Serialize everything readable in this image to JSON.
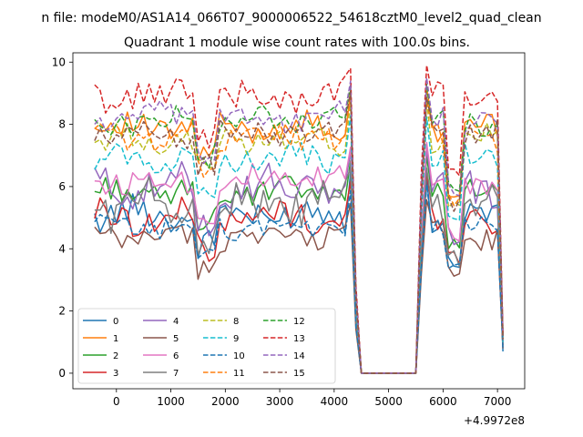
{
  "chart_data": {
    "type": "line",
    "suptitle": "n file: modeM0/AS1A14_066T07_9000006522_54618cztM0_level2_quad_clean",
    "title": "Quadrant 1 module wise count rates with 100.0s bins.",
    "xlabel": "",
    "ylabel": "",
    "offset_text": "+4.9972e8",
    "xlim": [
      -800,
      7500
    ],
    "ylim": [
      -0.5,
      10.3
    ],
    "xticks": [
      0,
      1000,
      2000,
      3000,
      4000,
      5000,
      6000,
      7000
    ],
    "yticks": [
      0,
      2,
      4,
      6,
      8,
      10
    ],
    "xticklabels": [
      "0",
      "1000",
      "2000",
      "3000",
      "4000",
      "5000",
      "6000",
      "7000"
    ],
    "yticklabels": [
      "0",
      "2",
      "4",
      "6",
      "8",
      "10"
    ],
    "legend_position": "lower-left",
    "segments": [
      {
        "x_start": -400,
        "x_end": 4300,
        "step": 100
      },
      {
        "x": [
          4400,
          4500,
          4600,
          5500,
          5600,
          5700
        ]
      },
      {
        "x_start": 5700,
        "x_end": 6900,
        "step": 100
      },
      {
        "x": [
          7000,
          7100
        ]
      }
    ],
    "series": [
      {
        "name": "0",
        "color": "#1f77b4",
        "dash": "solid",
        "base": 5.1,
        "amp": 0.6,
        "phase": 0.3,
        "drop_end": 0.7
      },
      {
        "name": "1",
        "color": "#ff7f0e",
        "dash": "solid",
        "base": 7.9,
        "amp": 0.5,
        "phase": 1.1,
        "drop_end": 1.2
      },
      {
        "name": "2",
        "color": "#2ca02c",
        "dash": "solid",
        "base": 5.8,
        "amp": 0.5,
        "phase": 2.0,
        "drop_end": 1.0
      },
      {
        "name": "3",
        "color": "#d62728",
        "dash": "solid",
        "base": 5.0,
        "amp": 0.6,
        "phase": 2.7,
        "drop_end": 0.9
      },
      {
        "name": "4",
        "color": "#9467bd",
        "dash": "solid",
        "base": 6.0,
        "amp": 0.7,
        "phase": 3.3,
        "drop_end": 1.1
      },
      {
        "name": "5",
        "color": "#8c564b",
        "dash": "solid",
        "base": 4.4,
        "amp": 0.5,
        "phase": 4.1,
        "drop_end": 0.8
      },
      {
        "name": "6",
        "color": "#e377c2",
        "dash": "solid",
        "base": 6.2,
        "amp": 0.5,
        "phase": 4.8,
        "drop_end": 1.0
      },
      {
        "name": "7",
        "color": "#7f7f7f",
        "dash": "solid",
        "base": 5.4,
        "amp": 0.8,
        "phase": 5.4,
        "drop_end": 0.9
      },
      {
        "name": "8",
        "color": "#bcbd22",
        "dash": "dashed",
        "base": 7.5,
        "amp": 0.5,
        "phase": 0.9,
        "drop_end": 1.1
      },
      {
        "name": "9",
        "color": "#17becf",
        "dash": "dashed",
        "base": 6.9,
        "amp": 0.5,
        "phase": 1.7,
        "drop_end": 1.0
      },
      {
        "name": "10",
        "color": "#1f77b4",
        "dash": "dashed",
        "base": 4.7,
        "amp": 0.4,
        "phase": 2.4,
        "drop_end": 0.8
      },
      {
        "name": "11",
        "color": "#ff7f0e",
        "dash": "dashed",
        "base": 7.6,
        "amp": 0.5,
        "phase": 3.0,
        "drop_end": 1.1
      },
      {
        "name": "12",
        "color": "#2ca02c",
        "dash": "dashed",
        "base": 8.1,
        "amp": 0.5,
        "phase": 3.8,
        "drop_end": 1.2
      },
      {
        "name": "13",
        "color": "#d62728",
        "dash": "dashed",
        "base": 8.9,
        "amp": 0.6,
        "phase": 4.5,
        "drop_end": 1.3
      },
      {
        "name": "14",
        "color": "#9467bd",
        "dash": "dashed",
        "base": 8.2,
        "amp": 0.5,
        "phase": 5.1,
        "drop_end": 1.2
      },
      {
        "name": "15",
        "color": "#8c564b",
        "dash": "dashed",
        "base": 7.7,
        "amp": 0.5,
        "phase": 5.9,
        "drop_end": 1.1
      }
    ]
  }
}
